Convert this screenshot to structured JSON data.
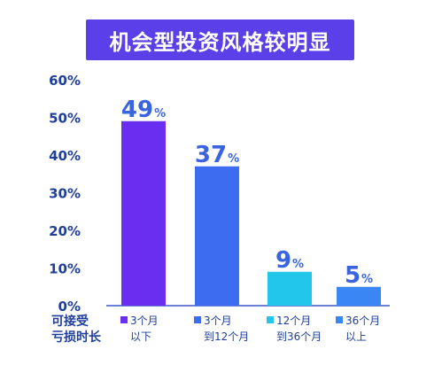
{
  "title": "机会型投资风格较明显",
  "colors": {
    "banner": "#5b3fe8",
    "label_text": "#1f3f9a",
    "value_text": "#3a63e0",
    "axis": "#3b57c9"
  },
  "chart_data": {
    "type": "bar",
    "title": "机会型投资风格较明显",
    "xlabel": "可接受亏损时长",
    "ylabel": "",
    "categories": [
      "3个月以下",
      "3个月到12个月",
      "12个月到36个月",
      "36个月以上"
    ],
    "category_lines": [
      [
        "3个月",
        "以下"
      ],
      [
        "3个月",
        "到12个月"
      ],
      [
        "12个月",
        "到36个月"
      ],
      [
        "36个月",
        "以上"
      ]
    ],
    "values": [
      49,
      37,
      9,
      5
    ],
    "value_unit": "%",
    "bar_colors": [
      "#6a2ef0",
      "#3d6cf0",
      "#22c6ea",
      "#3b86f5"
    ],
    "ylim": [
      0,
      60
    ],
    "yticks": [
      0,
      10,
      20,
      30,
      40,
      50,
      60
    ],
    "ytick_labels": [
      "0%",
      "10%",
      "20%",
      "30%",
      "40%",
      "50%",
      "60%"
    ],
    "grid": false,
    "legend": "none"
  }
}
